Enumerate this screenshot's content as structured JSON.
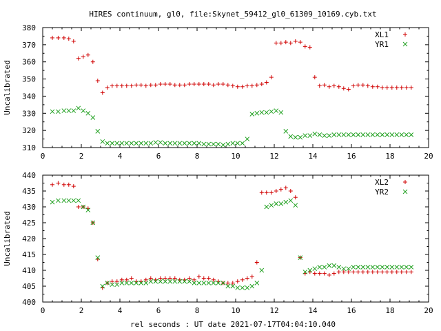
{
  "figure": {
    "title": "HIRES continuum, gl0, file:Skynet_59412_gl0_61309_10169.cyb.txt",
    "xlabel": "rel seconds : UT date 2021-07-17T04:04:10.040"
  },
  "colors": {
    "series_1": "#d00000",
    "series_2": "#20a020"
  },
  "chart_data": [
    {
      "type": "scatter",
      "ylabel": "Uncalibrated",
      "xlim": [
        0,
        20
      ],
      "ylim": [
        310,
        380
      ],
      "xticks": [
        0,
        2,
        4,
        6,
        8,
        10,
        12,
        14,
        16,
        18,
        20
      ],
      "yticks": [
        310,
        320,
        330,
        340,
        350,
        360,
        370,
        380
      ],
      "legend": "top-right",
      "series": [
        {
          "name": "XL1",
          "marker": "plus",
          "x": [
            0.5,
            0.8,
            1.1,
            1.35,
            1.6,
            1.85,
            2.1,
            2.35,
            2.6,
            2.85,
            3.1,
            3.35,
            3.6,
            3.85,
            4.1,
            4.35,
            4.6,
            4.85,
            5.1,
            5.35,
            5.6,
            5.85,
            6.1,
            6.35,
            6.6,
            6.85,
            7.1,
            7.35,
            7.6,
            7.85,
            8.1,
            8.35,
            8.6,
            8.85,
            9.1,
            9.35,
            9.6,
            9.85,
            10.1,
            10.35,
            10.6,
            10.85,
            11.1,
            11.35,
            11.6,
            11.85,
            12.1,
            12.35,
            12.6,
            12.85,
            13.1,
            13.35,
            13.6,
            13.85,
            14.1,
            14.35,
            14.6,
            14.85,
            15.1,
            15.35,
            15.6,
            15.85,
            16.1,
            16.35,
            16.6,
            16.85,
            17.1,
            17.35,
            17.6,
            17.85,
            18.1,
            18.35,
            18.6,
            18.85,
            19.1
          ],
          "y": [
            374,
            374,
            374,
            373.5,
            372,
            362,
            363,
            364,
            360,
            349,
            342,
            345,
            346,
            346,
            346,
            346,
            346,
            346.5,
            346.5,
            346,
            346.5,
            346.5,
            347,
            347,
            347,
            346.5,
            346.5,
            346.5,
            347,
            347,
            347,
            347,
            347,
            346.5,
            347,
            347,
            346.5,
            346,
            345.5,
            345.5,
            346,
            346,
            346.5,
            347,
            348,
            351,
            371,
            371,
            371.5,
            371,
            372,
            371.5,
            369,
            368.5,
            351,
            346,
            346.5,
            345.5,
            346,
            345.5,
            344.5,
            344,
            346,
            346.5,
            346.5,
            346,
            345.5,
            345.5,
            345,
            345,
            345,
            345,
            345,
            345,
            345
          ]
        },
        {
          "name": "YR1",
          "marker": "cross",
          "x": [
            0.5,
            0.8,
            1.1,
            1.35,
            1.6,
            1.85,
            2.1,
            2.35,
            2.6,
            2.85,
            3.1,
            3.35,
            3.6,
            3.85,
            4.1,
            4.35,
            4.6,
            4.85,
            5.1,
            5.35,
            5.6,
            5.85,
            6.1,
            6.35,
            6.6,
            6.85,
            7.1,
            7.35,
            7.6,
            7.85,
            8.1,
            8.35,
            8.6,
            8.85,
            9.1,
            9.35,
            9.6,
            9.85,
            10.1,
            10.35,
            10.6,
            10.85,
            11.1,
            11.35,
            11.6,
            11.85,
            12.1,
            12.35,
            12.6,
            12.85,
            13.1,
            13.35,
            13.6,
            13.85,
            14.1,
            14.35,
            14.6,
            14.85,
            15.1,
            15.35,
            15.6,
            15.85,
            16.1,
            16.35,
            16.6,
            16.85,
            17.1,
            17.35,
            17.6,
            17.85,
            18.1,
            18.35,
            18.6,
            18.85,
            19.1
          ],
          "y": [
            331,
            331,
            331.5,
            331.5,
            331.5,
            333,
            331.5,
            330,
            327.5,
            319.5,
            313.5,
            312.5,
            312.5,
            312.5,
            312.5,
            312.5,
            312.5,
            312.5,
            312.5,
            312.5,
            312.5,
            313,
            313,
            312.5,
            312.5,
            312.5,
            312.5,
            312.5,
            312.5,
            312.5,
            312.5,
            312,
            312,
            312,
            312,
            311.5,
            312,
            312.5,
            312.5,
            312.5,
            315,
            329.5,
            330,
            330.5,
            330.5,
            331,
            331.5,
            330.5,
            319.5,
            316.5,
            316,
            316,
            317,
            317,
            318,
            317.5,
            317,
            317,
            317.5,
            317.5,
            317.5,
            317.5,
            317.5,
            317.5,
            317.5,
            317.5,
            317.5,
            317.5,
            317.5,
            317.5,
            317.5,
            317.5,
            317.5,
            317.5,
            317.5
          ]
        }
      ]
    },
    {
      "type": "scatter",
      "ylabel": "Uncalibrated",
      "xlim": [
        0,
        20
      ],
      "ylim": [
        400,
        440
      ],
      "xticks": [
        0,
        2,
        4,
        6,
        8,
        10,
        12,
        14,
        16,
        18,
        20
      ],
      "yticks": [
        400,
        405,
        410,
        415,
        420,
        425,
        430,
        435,
        440
      ],
      "legend": "top-right",
      "series": [
        {
          "name": "XL2",
          "marker": "plus",
          "x": [
            0.5,
            0.8,
            1.1,
            1.35,
            1.6,
            1.85,
            2.1,
            2.35,
            2.6,
            2.85,
            3.1,
            3.35,
            3.6,
            3.85,
            4.1,
            4.35,
            4.6,
            4.85,
            5.1,
            5.35,
            5.6,
            5.85,
            6.1,
            6.35,
            6.6,
            6.85,
            7.1,
            7.35,
            7.6,
            7.85,
            8.1,
            8.35,
            8.6,
            8.85,
            9.1,
            9.35,
            9.6,
            9.85,
            10.1,
            10.35,
            10.6,
            10.85,
            11.1,
            11.35,
            11.6,
            11.85,
            12.1,
            12.35,
            12.6,
            12.85,
            13.1,
            13.35,
            13.6,
            13.85,
            14.1,
            14.35,
            14.6,
            14.85,
            15.1,
            15.35,
            15.6,
            15.85,
            16.1,
            16.35,
            16.6,
            16.85,
            17.1,
            17.35,
            17.6,
            17.85,
            18.1,
            18.35,
            18.6,
            18.85,
            19.1
          ],
          "y": [
            437,
            437.5,
            437,
            437,
            436.5,
            430,
            430,
            429.5,
            425,
            413.5,
            404.5,
            406,
            406.5,
            406.5,
            407,
            407,
            407.5,
            406.5,
            406.5,
            407,
            407.5,
            407,
            407.5,
            407.5,
            407.5,
            407.5,
            407,
            407,
            407.5,
            407,
            408,
            407.5,
            407.5,
            407,
            406.5,
            406,
            406,
            406,
            406.5,
            407,
            407.5,
            408,
            412.5,
            434.5,
            434.5,
            434.5,
            435,
            435.5,
            436,
            435,
            433,
            414,
            409,
            409.5,
            409,
            409,
            409,
            408.5,
            409,
            409.5,
            409.5,
            409.5,
            409.5,
            409.5,
            409.5,
            409.5,
            409.5,
            409.5,
            409.5,
            409.5,
            409.5,
            409.5,
            409.5,
            409.5,
            409.5
          ]
        },
        {
          "name": "YR2",
          "marker": "cross",
          "x": [
            0.5,
            0.8,
            1.1,
            1.35,
            1.6,
            1.85,
            2.1,
            2.35,
            2.6,
            2.85,
            3.1,
            3.35,
            3.6,
            3.85,
            4.1,
            4.35,
            4.6,
            4.85,
            5.1,
            5.35,
            5.6,
            5.85,
            6.1,
            6.35,
            6.6,
            6.85,
            7.1,
            7.35,
            7.6,
            7.85,
            8.1,
            8.35,
            8.6,
            8.85,
            9.1,
            9.35,
            9.6,
            9.85,
            10.1,
            10.35,
            10.6,
            10.85,
            11.1,
            11.35,
            11.6,
            11.85,
            12.1,
            12.35,
            12.6,
            12.85,
            13.1,
            13.35,
            13.6,
            13.85,
            14.1,
            14.35,
            14.6,
            14.85,
            15.1,
            15.35,
            15.6,
            15.85,
            16.1,
            16.35,
            16.6,
            16.85,
            17.1,
            17.35,
            17.6,
            17.85,
            18.1,
            18.35,
            18.6,
            18.85,
            19.1
          ],
          "y": [
            431.5,
            432,
            432,
            432,
            432,
            432,
            430,
            429,
            425,
            414,
            405,
            406,
            405.5,
            405.5,
            406,
            406,
            406,
            406,
            406,
            406,
            406.5,
            406.5,
            406.5,
            406.5,
            406.5,
            406.5,
            406.5,
            406.5,
            406.5,
            406,
            406,
            406,
            406,
            406,
            406,
            406,
            405,
            405,
            404.5,
            404.5,
            404.5,
            405,
            406,
            410,
            430,
            430.5,
            431,
            431,
            431.5,
            432,
            430.5,
            414,
            409.5,
            410,
            410.5,
            411,
            411,
            411.5,
            411.5,
            411,
            410.5,
            410.5,
            411,
            411,
            411,
            411,
            411,
            411,
            411,
            411,
            411,
            411,
            411,
            411,
            411
          ]
        }
      ]
    }
  ]
}
